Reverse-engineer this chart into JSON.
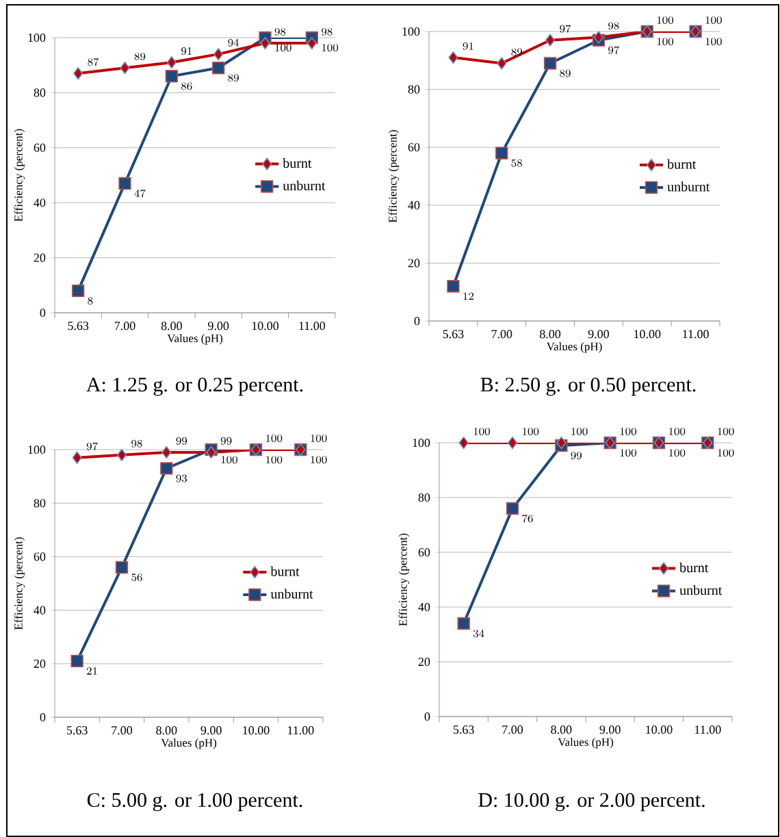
{
  "chart_data": [
    {
      "type": "line",
      "title": "A:  1.25 g. or 0.25 percent.",
      "xlabel": "Values (pH)",
      "ylabel": "Efficiency (percent)",
      "categories": [
        "5.63",
        "7.00",
        "8.00",
        "9.00",
        "10.00",
        "11.00"
      ],
      "ylim": [
        0,
        100
      ],
      "yticks": [
        0,
        20,
        40,
        60,
        80,
        100
      ],
      "grid": "y",
      "legend": "right",
      "data_labels": true,
      "series": [
        {
          "name": "burnt",
          "color": "#c00000",
          "marker": "diamond",
          "values": [
            87,
            89,
            91,
            94,
            98,
            98
          ]
        },
        {
          "name": "unburnt",
          "color": "#1f497d",
          "marker": "square",
          "values": [
            8,
            47,
            86,
            89,
            100,
            100
          ]
        }
      ]
    },
    {
      "type": "line",
      "title": "B:  2.50 g. or 0.50 percent.",
      "xlabel": "Values (pH)",
      "ylabel": "Efficiency (percent)",
      "categories": [
        "5.63",
        "7.00",
        "8.00",
        "9.00",
        "10.00",
        "11.00"
      ],
      "ylim": [
        0,
        100
      ],
      "yticks": [
        0,
        20,
        40,
        60,
        80,
        100
      ],
      "grid": "y",
      "legend": "right",
      "data_labels": true,
      "series": [
        {
          "name": "burnt",
          "color": "#c00000",
          "marker": "diamond",
          "values": [
            91,
            89,
            97,
            98,
            100,
            100
          ]
        },
        {
          "name": "unburnt",
          "color": "#1f497d",
          "marker": "square",
          "values": [
            12,
            58,
            89,
            97,
            100,
            100
          ]
        }
      ]
    },
    {
      "type": "line",
      "title": "C:  5.00 g. or 1.00 percent.",
      "xlabel": "Values (pH)",
      "ylabel": "Efficiency (percent)",
      "categories": [
        "5.63",
        "7.00",
        "8.00",
        "9.00",
        "10.00",
        "11.00"
      ],
      "ylim": [
        0,
        100
      ],
      "yticks": [
        0,
        20,
        40,
        60,
        80,
        100
      ],
      "grid": "y",
      "legend": "right",
      "data_labels": true,
      "series": [
        {
          "name": "burnt",
          "color": "#c00000",
          "marker": "diamond",
          "values": [
            97,
            98,
            99,
            99,
            100,
            100
          ]
        },
        {
          "name": "unburnt",
          "color": "#1f497d",
          "marker": "square",
          "values": [
            21,
            56,
            93,
            100,
            100,
            100
          ]
        }
      ]
    },
    {
      "type": "line",
      "title": "D: 10.00 g. or 2.00 percent.",
      "xlabel": "Values (pH)",
      "ylabel": "Efficiency (percent)",
      "categories": [
        "5.63",
        "7.00",
        "8.00",
        "9.00",
        "10.00",
        "11.00"
      ],
      "ylim": [
        0,
        100
      ],
      "yticks": [
        0,
        20,
        40,
        60,
        80,
        100
      ],
      "grid": "y",
      "legend": "right",
      "data_labels": true,
      "series": [
        {
          "name": "burnt",
          "color": "#c00000",
          "marker": "diamond",
          "values": [
            100,
            100,
            100,
            100,
            100,
            100
          ]
        },
        {
          "name": "unburnt",
          "color": "#1f497d",
          "marker": "square",
          "values": [
            34,
            76,
            99,
            100,
            100,
            100
          ]
        }
      ]
    }
  ]
}
